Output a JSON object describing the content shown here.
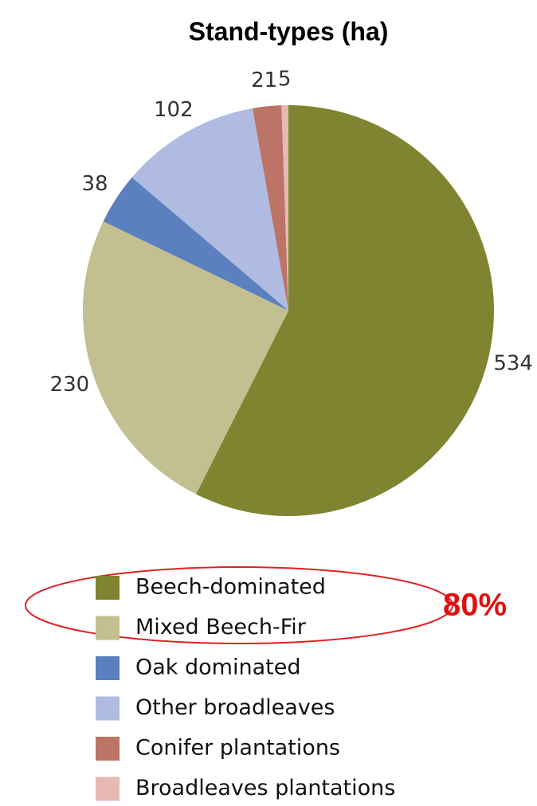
{
  "chart_data": {
    "type": "pie",
    "title": "Stand-types (ha)",
    "categories": [
      "Beech-dominated",
      "Mixed Beech-Fir",
      "Oak dominated",
      "Other broadleaves",
      "Conifer plantations",
      "Broadleaves plantations"
    ],
    "values": [
      534,
      230,
      38,
      102,
      21,
      5
    ],
    "colors": [
      "#7f8431",
      "#c2bf91",
      "#5b7fbf",
      "#afbbe0",
      "#bc7466",
      "#e6b9b3"
    ],
    "annotation": "80%"
  }
}
